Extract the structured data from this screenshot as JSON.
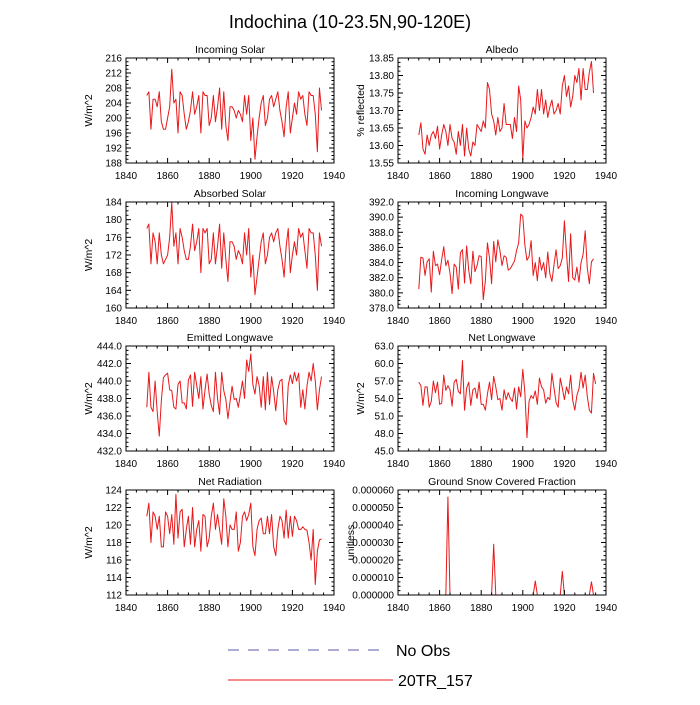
{
  "figure": {
    "title": "Indochina (10-23.5N,90-120E)",
    "legend": [
      {
        "label": "No Obs",
        "color": "#5a5aa8",
        "style": "dashed"
      },
      {
        "label": "20TR_157",
        "color": "#e8181a",
        "style": "solid"
      }
    ]
  },
  "chart_data": [
    {
      "type": "line",
      "title": "Incoming Solar",
      "xlabel": "",
      "ylabel": "W/m^2",
      "xlim": [
        1840,
        1940
      ],
      "ylim": [
        188,
        216
      ],
      "xticks": [
        "1840",
        "1860",
        "1880",
        "1900",
        "1920",
        "1940"
      ],
      "yticks": [
        "188",
        "192",
        "196",
        "200",
        "204",
        "208",
        "212",
        "216"
      ],
      "series": [
        {
          "name": "20TR_157",
          "x0": 1850,
          "values": [
            206,
            207,
            197,
            205,
            205,
            203,
            207,
            199,
            197,
            197,
            200,
            203,
            213,
            204,
            205,
            196,
            207,
            206,
            201,
            197,
            199,
            202,
            207,
            201,
            203,
            206,
            196,
            207,
            206,
            206,
            198,
            200,
            206,
            199,
            203,
            208,
            197,
            207,
            198,
            194,
            203,
            203,
            202,
            200,
            202,
            201,
            199,
            206,
            201,
            206,
            194,
            200,
            189,
            195,
            200,
            204,
            206,
            198,
            200,
            205,
            206,
            203,
            205,
            207,
            202,
            199,
            195,
            203,
            207,
            196,
            200,
            204,
            201,
            207,
            205,
            206,
            201,
            198,
            207,
            206,
            206,
            201,
            191,
            208,
            202
          ]
        }
      ]
    },
    {
      "type": "line",
      "title": "Albedo",
      "xlabel": "",
      "ylabel": "% reflected",
      "xlim": [
        1840,
        1940
      ],
      "ylim": [
        13.55,
        13.85
      ],
      "xticks": [
        "1840",
        "1860",
        "1880",
        "1900",
        "1920",
        "1940"
      ],
      "yticks": [
        "13.55",
        "13.60",
        "13.65",
        "13.70",
        "13.75",
        "13.80",
        "13.85"
      ],
      "series": [
        {
          "name": "20TR_157",
          "x0": 1850,
          "values": [
            13.63,
            13.665,
            13.59,
            13.575,
            13.63,
            13.6,
            13.63,
            13.64,
            13.62,
            13.655,
            13.59,
            13.63,
            13.66,
            13.64,
            13.6,
            13.66,
            13.62,
            13.61,
            13.575,
            13.64,
            13.6,
            13.66,
            13.57,
            13.65,
            13.59,
            13.57,
            13.61,
            13.6,
            13.66,
            13.65,
            13.64,
            13.67,
            13.65,
            13.78,
            13.76,
            13.69,
            13.67,
            13.63,
            13.68,
            13.64,
            13.65,
            13.72,
            13.66,
            13.66,
            13.66,
            13.62,
            13.68,
            13.64,
            13.77,
            13.73,
            13.56,
            13.67,
            13.65,
            13.66,
            13.68,
            13.71,
            13.69,
            13.76,
            13.7,
            13.76,
            13.69,
            13.73,
            13.68,
            13.71,
            13.73,
            13.69,
            13.7,
            13.72,
            13.69,
            13.77,
            13.8,
            13.74,
            13.77,
            13.71,
            13.74,
            13.8,
            13.78,
            13.82,
            13.73,
            13.82,
            13.76,
            13.76,
            13.81,
            13.84,
            13.75
          ]
        }
      ]
    },
    {
      "type": "line",
      "title": "Absorbed Solar",
      "xlabel": "",
      "ylabel": "W/m^2",
      "xlim": [
        1840,
        1940
      ],
      "ylim": [
        160,
        184
      ],
      "xticks": [
        "1840",
        "1860",
        "1880",
        "1900",
        "1920",
        "1940"
      ],
      "yticks": [
        "160",
        "164",
        "168",
        "172",
        "176",
        "180",
        "184"
      ],
      "series": [
        {
          "name": "20TR_157",
          "x0": 1850,
          "values": [
            178,
            179,
            170,
            177,
            175,
            170,
            177,
            172,
            170,
            171,
            172,
            176,
            184,
            174,
            177,
            170,
            178,
            176,
            173,
            171,
            171,
            174,
            179,
            173,
            175,
            178,
            168,
            178,
            177,
            178,
            170,
            171,
            177,
            170,
            174,
            179,
            169,
            177,
            171,
            166,
            175,
            175,
            174,
            171,
            173,
            172,
            170,
            177,
            172,
            178,
            167,
            172,
            163,
            167,
            171,
            175,
            177,
            170,
            172,
            176,
            177,
            175,
            177,
            178,
            174,
            171,
            167,
            174,
            178,
            168,
            172,
            175,
            172,
            178,
            176,
            177,
            173,
            169,
            178,
            177,
            177,
            172,
            164,
            177,
            174
          ]
        }
      ]
    },
    {
      "type": "line",
      "title": "Incoming Longwave",
      "xlabel": "",
      "ylabel": "",
      "xlim": [
        1840,
        1940
      ],
      "ylim": [
        378,
        392
      ],
      "xticks": [
        "1840",
        "1860",
        "1880",
        "1900",
        "1920",
        "1940"
      ],
      "yticks": [
        "378.0",
        "380.0",
        "382.0",
        "384.0",
        "386.0",
        "388.0",
        "390.0",
        "392.0"
      ],
      "series": [
        {
          "name": "20TR_157",
          "x0": 1850,
          "values": [
            380.5,
            384.7,
            384.6,
            382.3,
            384.1,
            384.5,
            380.1,
            385.5,
            383.6,
            383.8,
            382.4,
            384.4,
            386.1,
            383.6,
            384.3,
            382.6,
            379.9,
            383.8,
            383.4,
            380.5,
            385.3,
            385.7,
            381.3,
            386.2,
            383.0,
            381.2,
            385.5,
            382.8,
            383.6,
            384.9,
            384.8,
            379.1,
            381.6,
            386.6,
            384.6,
            381.2,
            386.8,
            384.1,
            387.0,
            385.6,
            383.6,
            384.9,
            384.7,
            383.0,
            383.2,
            383.7,
            384.2,
            385.6,
            386.6,
            390.4,
            390.1,
            386.3,
            384.3,
            384.8,
            386.9,
            382.3,
            384.0,
            381.6,
            384.7,
            383.0,
            384.0,
            382.0,
            385.4,
            382.5,
            381.5,
            383.7,
            385.7,
            383.2,
            383.6,
            384.6,
            389.5,
            385.2,
            381.5,
            387.8,
            382.0,
            381.7,
            383.4,
            381.4,
            384.0,
            385.1,
            388.2,
            383.3,
            381.2,
            384.1,
            384.5
          ]
        }
      ]
    },
    {
      "type": "line",
      "title": "Emitted Longwave",
      "xlabel": "",
      "ylabel": "W/m^2",
      "xlim": [
        1840,
        1940
      ],
      "ylim": [
        432,
        444
      ],
      "xticks": [
        "1840",
        "1860",
        "1880",
        "1900",
        "1920",
        "1940"
      ],
      "yticks": [
        "432.0",
        "434.0",
        "436.0",
        "438.0",
        "440.0",
        "442.0",
        "444.0"
      ],
      "series": [
        {
          "name": "20TR_157",
          "x0": 1850,
          "values": [
            437.0,
            441.0,
            437.0,
            436.5,
            440.0,
            436.5,
            433.7,
            437.8,
            440.4,
            440.7,
            440.9,
            439.0,
            438.9,
            437.0,
            436.8,
            439.6,
            440.0,
            437.5,
            437.5,
            436.8,
            440.1,
            440.7,
            437.1,
            441.0,
            439.5,
            438.0,
            440.5,
            436.8,
            439.0,
            440.8,
            438.5,
            437.2,
            436.5,
            441.0,
            438.0,
            436.2,
            441.0,
            438.9,
            437.9,
            435.7,
            437.6,
            439.4,
            437.9,
            438.0,
            437.0,
            438.5,
            440.0,
            438.0,
            442.4,
            441.1,
            443.1,
            439.6,
            438.5,
            440.5,
            439.5,
            437.0,
            440.5,
            436.7,
            441.0,
            437.3,
            440.5,
            438.8,
            436.6,
            439.0,
            440.0,
            440.2,
            435.5,
            435.0,
            439.5,
            440.7,
            439.7,
            441.0,
            440.0,
            440.9,
            437.0,
            439.0,
            436.8,
            439.4,
            441.0,
            440.0,
            442.0,
            440.0,
            436.7,
            439.0,
            440.5
          ]
        }
      ]
    },
    {
      "type": "line",
      "title": "Net Longwave",
      "xlabel": "",
      "ylabel": "W/m^2",
      "xlim": [
        1840,
        1940
      ],
      "ylim": [
        45,
        63
      ],
      "xticks": [
        "1840",
        "1860",
        "1880",
        "1900",
        "1920",
        "1940"
      ],
      "yticks": [
        "45.0",
        "48.0",
        "51.0",
        "54.0",
        "57.0",
        "60.0",
        "63.0"
      ],
      "series": [
        {
          "name": "20TR_157",
          "x0": 1850,
          "values": [
            56.8,
            56.2,
            52.8,
            56.0,
            56.0,
            52.5,
            53.5,
            57.0,
            55.0,
            56.8,
            53.0,
            53.2,
            58.0,
            55.4,
            56.2,
            55.5,
            52.7,
            56.8,
            57.3,
            55.2,
            54.8,
            60.5,
            52.0,
            55.8,
            56.8,
            52.8,
            55.5,
            55.8,
            54.0,
            56.8,
            53.0,
            53.0,
            52.0,
            54.8,
            56.8,
            53.8,
            57.8,
            56.0,
            53.8,
            54.0,
            52.0,
            55.5,
            53.8,
            55.0,
            54.0,
            53.5,
            55.8,
            52.2,
            56.0,
            54.3,
            59.0,
            55.0,
            47.3,
            53.5,
            54.5,
            54.0,
            55.3,
            53.0,
            57.5,
            56.0,
            55.5,
            53.2,
            54.2,
            53.8,
            58.3,
            55.8,
            53.3,
            52.5,
            57.5,
            55.8,
            53.8,
            56.0,
            54.8,
            58.0,
            53.7,
            52.0,
            54.5,
            55.7,
            58.5,
            55.8,
            58.0,
            54.4,
            52.0,
            51.5,
            58.3,
            56.5
          ]
        }
      ]
    },
    {
      "type": "line",
      "title": "Net Radiation",
      "xlabel": "",
      "ylabel": "W/m^2",
      "xlim": [
        1840,
        1940
      ],
      "ylim": [
        112,
        124
      ],
      "xticks": [
        "1840",
        "1860",
        "1880",
        "1900",
        "1920",
        "1940"
      ],
      "yticks": [
        "112",
        "114",
        "116",
        "118",
        "120",
        "122",
        "124"
      ],
      "series": [
        {
          "name": "20TR_157",
          "x0": 1850,
          "values": [
            121.0,
            122.5,
            118.0,
            121.5,
            121.0,
            119.5,
            121.0,
            117.5,
            117.5,
            121.5,
            121.0,
            119.0,
            121.2,
            117.8,
            123.5,
            118.5,
            121.5,
            121.8,
            117.5,
            119.5,
            121.0,
            117.8,
            122.0,
            117.5,
            119.5,
            120.5,
            117.0,
            121.2,
            121.0,
            117.5,
            118.5,
            121.0,
            122.5,
            119.5,
            121.2,
            119.5,
            117.8,
            123.0,
            121.0,
            117.5,
            120.0,
            119.5,
            119.5,
            121.5,
            117.0,
            118.0,
            121.0,
            121.5,
            120.5,
            121.2,
            122.5,
            117.5,
            116.5,
            119.5,
            120.5,
            120.8,
            119.0,
            119.0,
            121.0,
            119.0,
            121.2,
            117.5,
            116.5,
            119.5,
            121.0,
            120.5,
            118.5,
            121.7,
            118.5,
            121.0,
            118.7,
            121.0,
            120.5,
            119.5,
            119.5,
            119.8,
            119.5,
            119.4,
            118.0,
            116.0,
            119.5,
            113.2,
            117.0,
            118.3,
            118.4
          ]
        }
      ]
    },
    {
      "type": "line",
      "title": "Ground Snow Covered Fraction",
      "xlabel": "",
      "ylabel": "unitless",
      "xlim": [
        1840,
        1940
      ],
      "ylim": [
        0,
        6e-05
      ],
      "xticks": [
        "1840",
        "1860",
        "1880",
        "1900",
        "1920",
        "1940"
      ],
      "yticks": [
        "0.000000",
        "0.000010",
        "0.000020",
        "0.000030",
        "0.000040",
        "0.000050",
        "0.000060"
      ],
      "series": [
        {
          "name": "20TR_157",
          "x0": 1850,
          "values": [
            0,
            0,
            0,
            0,
            0,
            0,
            0,
            0,
            0,
            0,
            0,
            0,
            0,
            0,
            5.6e-05,
            0,
            0,
            0,
            0,
            0,
            0,
            0,
            0,
            0,
            0,
            0,
            0,
            0,
            0,
            0,
            0,
            0,
            0,
            0,
            0,
            0,
            2.9e-05,
            0,
            0,
            0,
            0,
            0,
            0,
            0,
            0,
            0,
            0,
            0,
            0,
            0,
            0,
            0,
            0,
            0,
            0,
            0,
            8e-06,
            0,
            0,
            0,
            0,
            0,
            0,
            0,
            0,
            0,
            0,
            0,
            0,
            1.35e-05,
            0,
            0,
            0,
            0,
            0,
            0,
            0,
            0,
            0,
            0,
            0,
            0,
            0,
            7.5e-06,
            0
          ]
        }
      ]
    }
  ]
}
